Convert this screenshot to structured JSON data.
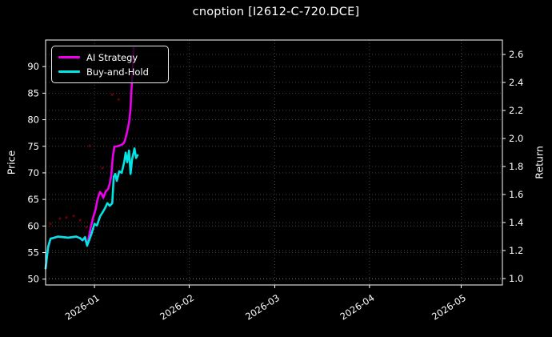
{
  "title": "cnoption [I2612-C-720.DCE]",
  "axes": {
    "left_label": "Price",
    "right_label": "Return"
  },
  "legend": {
    "items": [
      {
        "label": "AI Strategy",
        "color": "#EE00EE"
      },
      {
        "label": "Buy-and-Hold",
        "color": "#00E5E5"
      }
    ]
  },
  "chart_data": {
    "type": "line",
    "title": "cnoption [I2612-C-720.DCE]",
    "background": "#000000",
    "text_color": "#ffffff",
    "grid": "dotted, both price and return tick levels, plus monthly verticals",
    "legend_position": "upper left",
    "x_axis": {
      "unit": "days relative to 2026-01-01",
      "range": [
        -16,
        133.5
      ],
      "ticks": [
        {
          "day": 0,
          "label": "2026-01"
        },
        {
          "day": 31,
          "label": "2026-02"
        },
        {
          "day": 59,
          "label": "2026-03"
        },
        {
          "day": 90,
          "label": "2026-04"
        },
        {
          "day": 120,
          "label": "2026-05"
        }
      ]
    },
    "y_left": {
      "label": "Price",
      "range": [
        48.9,
        95.0
      ],
      "ticks": [
        50,
        55,
        60,
        65,
        70,
        75,
        80,
        85,
        90
      ]
    },
    "y_right": {
      "label": "Return",
      "range": [
        0.954,
        2.703
      ],
      "tick_labels": [
        "1.0",
        "1.2",
        "1.4",
        "1.6",
        "1.8",
        "2.0",
        "2.2",
        "2.4",
        "2.6"
      ],
      "tick_values": [
        1.0,
        1.2,
        1.4,
        1.6,
        1.8,
        2.0,
        2.2,
        2.4,
        2.6
      ]
    },
    "series": [
      {
        "name": "AI Strategy",
        "color": "#EE00EE",
        "axis": "left",
        "line_width": 2.6,
        "points": [
          [
            -16,
            52.0
          ],
          [
            -15.2,
            56.0
          ],
          [
            -14.4,
            57.6
          ],
          [
            -12,
            58.0
          ],
          [
            -8.6,
            57.8
          ],
          [
            -6,
            58.0
          ],
          [
            -4.7,
            57.7
          ],
          [
            -3.9,
            57.3
          ],
          [
            -3.1,
            57.9
          ],
          [
            -2.4,
            56.3
          ],
          [
            -1.3,
            59.5
          ],
          [
            -0.5,
            61.5
          ],
          [
            0.3,
            63.0
          ],
          [
            1,
            65.0
          ],
          [
            1.8,
            66.4
          ],
          [
            2.4,
            66.0
          ],
          [
            2.9,
            65.3
          ],
          [
            3.7,
            66.5
          ],
          [
            4.5,
            67.0
          ],
          [
            5,
            68.0
          ],
          [
            5.5,
            69.5
          ],
          [
            6,
            73.0
          ],
          [
            6.5,
            74.9
          ],
          [
            7.3,
            75.0
          ],
          [
            8.1,
            75.1
          ],
          [
            8.9,
            75.3
          ],
          [
            9.7,
            75.7
          ],
          [
            10.2,
            76.6
          ],
          [
            10.7,
            77.8
          ],
          [
            11.3,
            79.5
          ],
          [
            11.8,
            82.0
          ],
          [
            12,
            84.5
          ],
          [
            12.3,
            87.5
          ],
          [
            12.6,
            90.5
          ],
          [
            12.8,
            93.5
          ]
        ]
      },
      {
        "name": "Buy-and-Hold",
        "color": "#00E5E5",
        "axis": "left",
        "line_width": 2.6,
        "points": [
          [
            -16,
            52.0
          ],
          [
            -15.2,
            56.0
          ],
          [
            -14.4,
            57.6
          ],
          [
            -12,
            58.0
          ],
          [
            -8.6,
            57.8
          ],
          [
            -6,
            58.0
          ],
          [
            -4.7,
            57.7
          ],
          [
            -3.9,
            57.3
          ],
          [
            -3.1,
            57.9
          ],
          [
            -2.4,
            56.3
          ],
          [
            -1,
            58.5
          ],
          [
            0,
            60.4
          ],
          [
            0.8,
            60.1
          ],
          [
            1.8,
            61.8
          ],
          [
            2.6,
            62.5
          ],
          [
            3.4,
            63.3
          ],
          [
            4.2,
            64.3
          ],
          [
            5,
            63.8
          ],
          [
            5.8,
            64.3
          ],
          [
            6.3,
            69.3
          ],
          [
            6.8,
            69.8
          ],
          [
            7.3,
            68.5
          ],
          [
            8.1,
            70.3
          ],
          [
            8.9,
            70.0
          ],
          [
            9.7,
            72.0
          ],
          [
            10.2,
            73.8
          ],
          [
            10.7,
            72.0
          ],
          [
            11.3,
            74.2
          ],
          [
            11.8,
            69.8
          ],
          [
            12.3,
            72.5
          ],
          [
            13.1,
            74.6
          ],
          [
            13.6,
            72.8
          ],
          [
            14.1,
            73.3
          ]
        ]
      }
    ],
    "signal_dots": {
      "color": "#8B0000",
      "points": [
        [
          -14.4,
          60.4
        ],
        [
          -11.3,
          61.4
        ],
        [
          -9.2,
          61.6
        ],
        [
          -6.8,
          61.9
        ],
        [
          -4.7,
          61.1
        ],
        [
          -2.6,
          59.8
        ],
        [
          -1.6,
          75.1
        ],
        [
          2.6,
          70.9
        ],
        [
          5.8,
          84.7
        ],
        [
          7.9,
          83.8
        ]
      ]
    }
  }
}
